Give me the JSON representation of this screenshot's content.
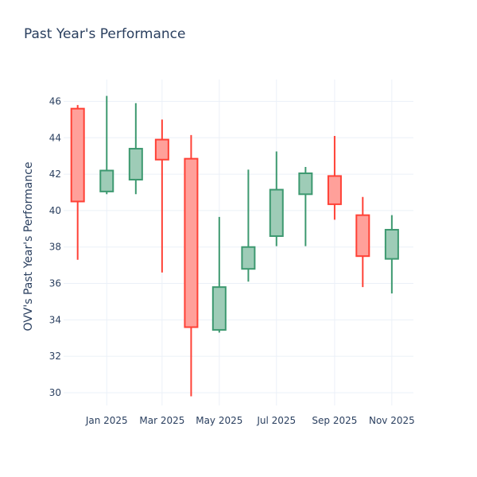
{
  "chart_data": {
    "type": "candlestick",
    "title": "Past Year's Performance",
    "xlabel": "",
    "ylabel": "OVV's Past Year's Performance",
    "ylim": [
      29.3,
      47.2
    ],
    "xlim": [
      "2024-11-16",
      "2025-11-24"
    ],
    "yticks": [
      30,
      32,
      34,
      36,
      38,
      40,
      42,
      44,
      46
    ],
    "xticks": [
      {
        "date": "2025-01-01",
        "label": "Jan 2025"
      },
      {
        "date": "2025-03-01",
        "label": "Mar 2025"
      },
      {
        "date": "2025-05-01",
        "label": "May 2025"
      },
      {
        "date": "2025-07-01",
        "label": "Jul 2025"
      },
      {
        "date": "2025-09-01",
        "label": "Sep 2025"
      },
      {
        "date": "2025-11-01",
        "label": "Nov 2025"
      }
    ],
    "grid": true,
    "increasing_color": "#3d9970",
    "decreasing_color": "#ff4136",
    "candles": [
      {
        "date": "2024-12-01",
        "open": 45.6,
        "high": 45.8,
        "low": 37.3,
        "close": 40.5
      },
      {
        "date": "2025-01-01",
        "open": 41.05,
        "high": 46.3,
        "low": 40.9,
        "close": 42.2
      },
      {
        "date": "2025-02-01",
        "open": 41.7,
        "high": 45.9,
        "low": 40.9,
        "close": 43.4
      },
      {
        "date": "2025-03-01",
        "open": 43.9,
        "high": 45.0,
        "low": 36.6,
        "close": 42.8
      },
      {
        "date": "2025-04-01",
        "open": 42.85,
        "high": 44.15,
        "low": 29.8,
        "close": 33.6
      },
      {
        "date": "2025-05-01",
        "open": 33.45,
        "high": 39.65,
        "low": 33.3,
        "close": 35.8
      },
      {
        "date": "2025-06-01",
        "open": 36.8,
        "high": 42.25,
        "low": 36.1,
        "close": 38.0
      },
      {
        "date": "2025-07-01",
        "open": 38.6,
        "high": 43.25,
        "low": 38.05,
        "close": 41.15
      },
      {
        "date": "2025-08-01",
        "open": 40.9,
        "high": 42.4,
        "low": 38.05,
        "close": 42.05
      },
      {
        "date": "2025-09-01",
        "open": 41.9,
        "high": 44.1,
        "low": 39.5,
        "close": 40.35
      },
      {
        "date": "2025-10-01",
        "open": 39.75,
        "high": 40.75,
        "low": 35.8,
        "close": 37.5
      },
      {
        "date": "2025-11-01",
        "open": 37.35,
        "high": 39.75,
        "low": 35.45,
        "close": 38.95
      }
    ]
  }
}
